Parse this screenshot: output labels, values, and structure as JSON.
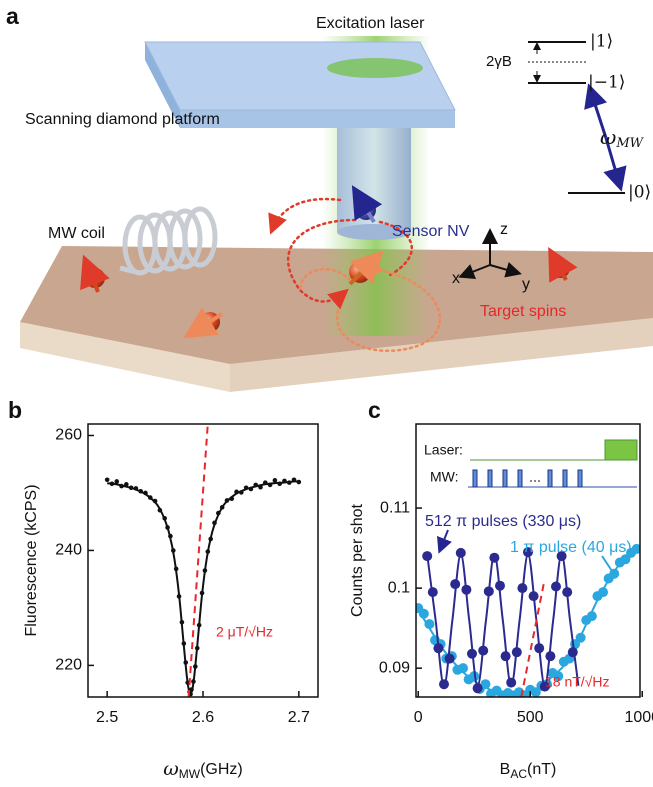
{
  "panel_labels": [
    "a",
    "b",
    "c"
  ],
  "schematic": {
    "excitation_laser": "Excitation laser",
    "platform": "Scanning diamond platform",
    "mw_coil": "MW coil",
    "sensor": "Sensor NV",
    "targets": "Target spins",
    "axes": {
      "z": "z",
      "x": "x",
      "y": "y"
    },
    "levels": {
      "plus_one": "|1⟩",
      "minus_one": "|−1⟩",
      "zero": "|0⟩"
    },
    "splitting": "2γB",
    "transition": {
      "main": "ω",
      "sub": "MW"
    }
  },
  "chart_data": [
    {
      "type": "scatter",
      "xlabel": {
        "main": "ω",
        "sub": "MW",
        "unit": "(GHz)"
      },
      "ylabel": "Fluorescence (kCPS)",
      "xlim": [
        2.48,
        2.72
      ],
      "xticks": [
        2.5,
        2.6,
        2.7
      ],
      "ylim": [
        214.5,
        262
      ],
      "yticks": [
        220,
        240,
        260
      ],
      "series": [
        {
          "color": "#111111",
          "style": "line",
          "x": [
            2.5,
            2.51,
            2.52,
            2.53,
            2.54,
            2.55,
            2.555,
            2.56,
            2.565,
            2.57,
            2.575,
            2.58,
            2.583,
            2.585,
            2.587,
            2.589,
            2.591,
            2.594,
            2.599,
            2.604,
            2.609,
            2.614,
            2.619,
            2.624,
            2.634,
            2.644,
            2.654,
            2.664,
            2.674,
            2.684,
            2.694,
            2.7
          ],
          "values": [
            251.7,
            251.5,
            251.1,
            250.6,
            249.8,
            248.4,
            247.2,
            245.4,
            242.8,
            238.7,
            232.3,
            223.4,
            218.3,
            215.9,
            215.0,
            215.9,
            218.3,
            223.4,
            232.3,
            238.7,
            242.8,
            245.4,
            247.2,
            248.4,
            249.8,
            250.6,
            251.1,
            251.5,
            251.7,
            251.8,
            252.0,
            252.0
          ]
        },
        {
          "color": "#111111",
          "style": "points",
          "x": [
            2.5,
            2.505,
            2.51,
            2.515,
            2.52,
            2.525,
            2.53,
            2.535,
            2.54,
            2.545,
            2.55,
            2.555,
            2.56,
            2.563,
            2.566,
            2.569,
            2.572,
            2.575,
            2.578,
            2.58,
            2.582,
            2.584,
            2.586,
            2.587,
            2.588,
            2.59,
            2.592,
            2.594,
            2.596,
            2.599,
            2.602,
            2.605,
            2.608,
            2.612,
            2.616,
            2.62,
            2.625,
            2.63,
            2.635,
            2.64,
            2.645,
            2.65,
            2.655,
            2.66,
            2.665,
            2.67,
            2.675,
            2.68,
            2.685,
            2.69,
            2.695,
            2.7
          ],
          "values": [
            252.3,
            251.6,
            252.0,
            251.2,
            251.5,
            250.9,
            250.8,
            250.3,
            250.0,
            249.2,
            248.6,
            247.0,
            245.6,
            244.0,
            242.5,
            240.0,
            236.8,
            232.0,
            227.5,
            223.8,
            220.5,
            217.0,
            215.4,
            215.0,
            215.8,
            217.2,
            219.8,
            223.0,
            227.0,
            232.6,
            236.5,
            239.8,
            242.0,
            244.8,
            246.5,
            247.5,
            248.7,
            249.0,
            250.2,
            250.1,
            250.9,
            250.7,
            251.4,
            251.0,
            251.8,
            251.4,
            252.2,
            251.6,
            252.1,
            251.8,
            252.3,
            251.9
          ]
        }
      ],
      "annotation_line": {
        "color": "#e8262b",
        "x": [
          2.585,
          2.605
        ],
        "y": [
          214.5,
          262
        ]
      },
      "annotation": "2 μT/√Hz"
    },
    {
      "type": "scatter",
      "xlabel": {
        "main": "B",
        "sub": "AC",
        "unit": "(nT)"
      },
      "ylabel": "Counts per shot",
      "xlim": [
        -10,
        990
      ],
      "xticks": [
        0,
        500,
        1000
      ],
      "ylim": [
        0.0864,
        0.1205
      ],
      "yticks": [
        0.09,
        0.1,
        0.11
      ],
      "inset": {
        "laser": "Laser:",
        "mw": "MW:"
      },
      "series": [
        {
          "color": "#2aa7de",
          "style": "line",
          "x": [
            0,
            50,
            100,
            150,
            200,
            250,
            300,
            350,
            400,
            450,
            500,
            550,
            600,
            650,
            700,
            750,
            800,
            850,
            900,
            950,
            980
          ],
          "values": [
            0.0973,
            0.095,
            0.0928,
            0.091,
            0.0895,
            0.0884,
            0.0876,
            0.087,
            0.0867,
            0.0867,
            0.087,
            0.0877,
            0.089,
            0.0903,
            0.0925,
            0.0955,
            0.0985,
            0.101,
            0.103,
            0.1043,
            0.1048
          ]
        },
        {
          "name": "1 π pulse (40 μs)",
          "color": "#2aa7de",
          "style": "points",
          "x": [
            0,
            25,
            50,
            75,
            100,
            125,
            150,
            175,
            200,
            225,
            250,
            275,
            300,
            325,
            350,
            375,
            400,
            425,
            450,
            475,
            500,
            525,
            550,
            575,
            600,
            625,
            650,
            675,
            700,
            725,
            750,
            775,
            800,
            825,
            850,
            875,
            900,
            925,
            950,
            975
          ],
          "values": [
            0.0975,
            0.0968,
            0.0955,
            0.0935,
            0.093,
            0.0912,
            0.0915,
            0.0898,
            0.09,
            0.0886,
            0.089,
            0.0874,
            0.088,
            0.0868,
            0.0872,
            0.0866,
            0.0869,
            0.0866,
            0.087,
            0.0866,
            0.0873,
            0.087,
            0.0878,
            0.088,
            0.0894,
            0.089,
            0.0908,
            0.0912,
            0.093,
            0.0938,
            0.096,
            0.0965,
            0.099,
            0.0995,
            0.1012,
            0.1018,
            0.1032,
            0.1036,
            0.1044,
            0.1049
          ]
        },
        {
          "color": "#2b2b8f",
          "style": "line",
          "x": [
            40,
            77.5,
            115,
            152.5,
            190,
            227.5,
            265,
            302.5,
            340,
            377.5,
            415,
            452.5,
            490,
            527.5,
            565,
            602.5,
            640,
            677.5,
            715
          ],
          "values": [
            0.1042,
            0.096,
            0.0878,
            0.096,
            0.1042,
            0.096,
            0.0878,
            0.096,
            0.1042,
            0.096,
            0.0878,
            0.096,
            0.1042,
            0.096,
            0.0878,
            0.096,
            0.1042,
            0.096,
            0.0878
          ]
        },
        {
          "name": "512 π pulses  (330 μs)",
          "color": "#2b2b8f",
          "style": "points",
          "x": [
            40,
            65,
            90,
            115,
            140,
            165,
            190,
            215,
            240,
            265,
            290,
            315,
            340,
            365,
            390,
            415,
            440,
            465,
            490,
            515,
            540,
            565,
            590,
            615,
            640,
            665,
            690
          ],
          "values": [
            0.104,
            0.0995,
            0.0925,
            0.088,
            0.0912,
            0.1005,
            0.1044,
            0.0998,
            0.0918,
            0.0875,
            0.0922,
            0.0996,
            0.1038,
            0.1003,
            0.0915,
            0.0882,
            0.092,
            0.1,
            0.1045,
            0.099,
            0.0925,
            0.0877,
            0.0915,
            0.1002,
            0.104,
            0.0995,
            0.092
          ]
        }
      ],
      "annotation_line": {
        "color": "#e8262b",
        "x": [
          460,
          560
        ],
        "y": [
          0.0864,
          0.1005
        ]
      },
      "annotation": "18 nT/√Hz"
    }
  ]
}
